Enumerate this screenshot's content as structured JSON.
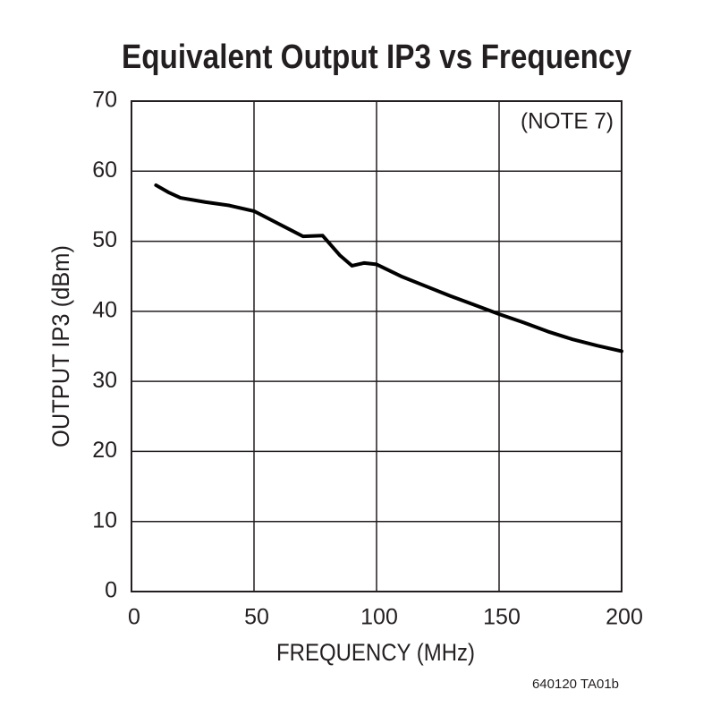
{
  "chart_data": {
    "type": "line",
    "title": "Equivalent Output IP3 vs Frequency",
    "x_label": "FREQUENCY (MHz)",
    "y_label": "OUTPUT IP3 (dBm)",
    "annotation": "(NOTE 7)",
    "footnote": "640120 TA01b",
    "x": [
      10,
      15,
      20,
      30,
      40,
      50,
      60,
      70,
      78,
      85,
      90,
      95,
      100,
      110,
      120,
      130,
      140,
      150,
      160,
      170,
      180,
      190,
      200
    ],
    "series": [
      {
        "name": "Output IP3",
        "color": "#000000",
        "values": [
          58,
          57,
          56.2,
          55.6,
          55.1,
          54.3,
          52.5,
          50.7,
          50.8,
          48,
          46.5,
          46.9,
          46.7,
          45,
          43.6,
          42.2,
          40.9,
          39.6,
          38.4,
          37.1,
          36,
          35.1,
          34.3
        ]
      }
    ],
    "xlim": [
      0,
      200
    ],
    "xticks": [
      0,
      50,
      100,
      150,
      200
    ],
    "ylim": [
      0,
      70
    ],
    "yticks": [
      0,
      10,
      20,
      30,
      40,
      50,
      60,
      70
    ],
    "grid": true
  }
}
